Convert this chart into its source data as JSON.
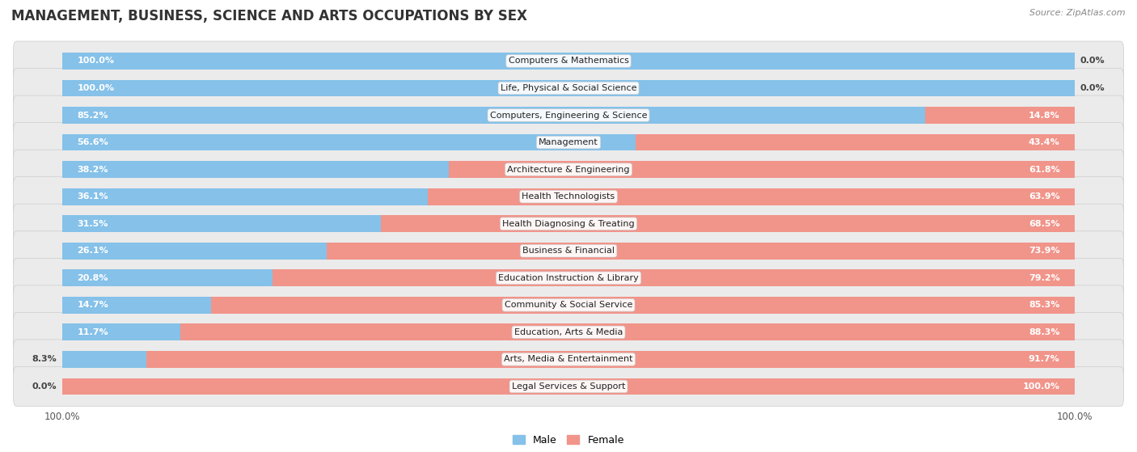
{
  "title": "MANAGEMENT, BUSINESS, SCIENCE AND ARTS OCCUPATIONS BY SEX",
  "source": "Source: ZipAtlas.com",
  "categories": [
    "Computers & Mathematics",
    "Life, Physical & Social Science",
    "Computers, Engineering & Science",
    "Management",
    "Architecture & Engineering",
    "Health Technologists",
    "Health Diagnosing & Treating",
    "Business & Financial",
    "Education Instruction & Library",
    "Community & Social Service",
    "Education, Arts & Media",
    "Arts, Media & Entertainment",
    "Legal Services & Support"
  ],
  "male": [
    100.0,
    100.0,
    85.2,
    56.6,
    38.2,
    36.1,
    31.5,
    26.1,
    20.8,
    14.7,
    11.7,
    8.3,
    0.0
  ],
  "female": [
    0.0,
    0.0,
    14.8,
    43.4,
    61.8,
    63.9,
    68.5,
    73.9,
    79.2,
    85.3,
    88.3,
    91.7,
    100.0
  ],
  "male_color": "#85C1E9",
  "female_color": "#F1948A",
  "row_bg_color": "#EBEBEB",
  "title_fontsize": 12,
  "label_fontsize": 8,
  "bar_height": 0.62,
  "figsize": [
    14.06,
    5.59
  ],
  "xlim_left": -5,
  "xlim_right": 105
}
